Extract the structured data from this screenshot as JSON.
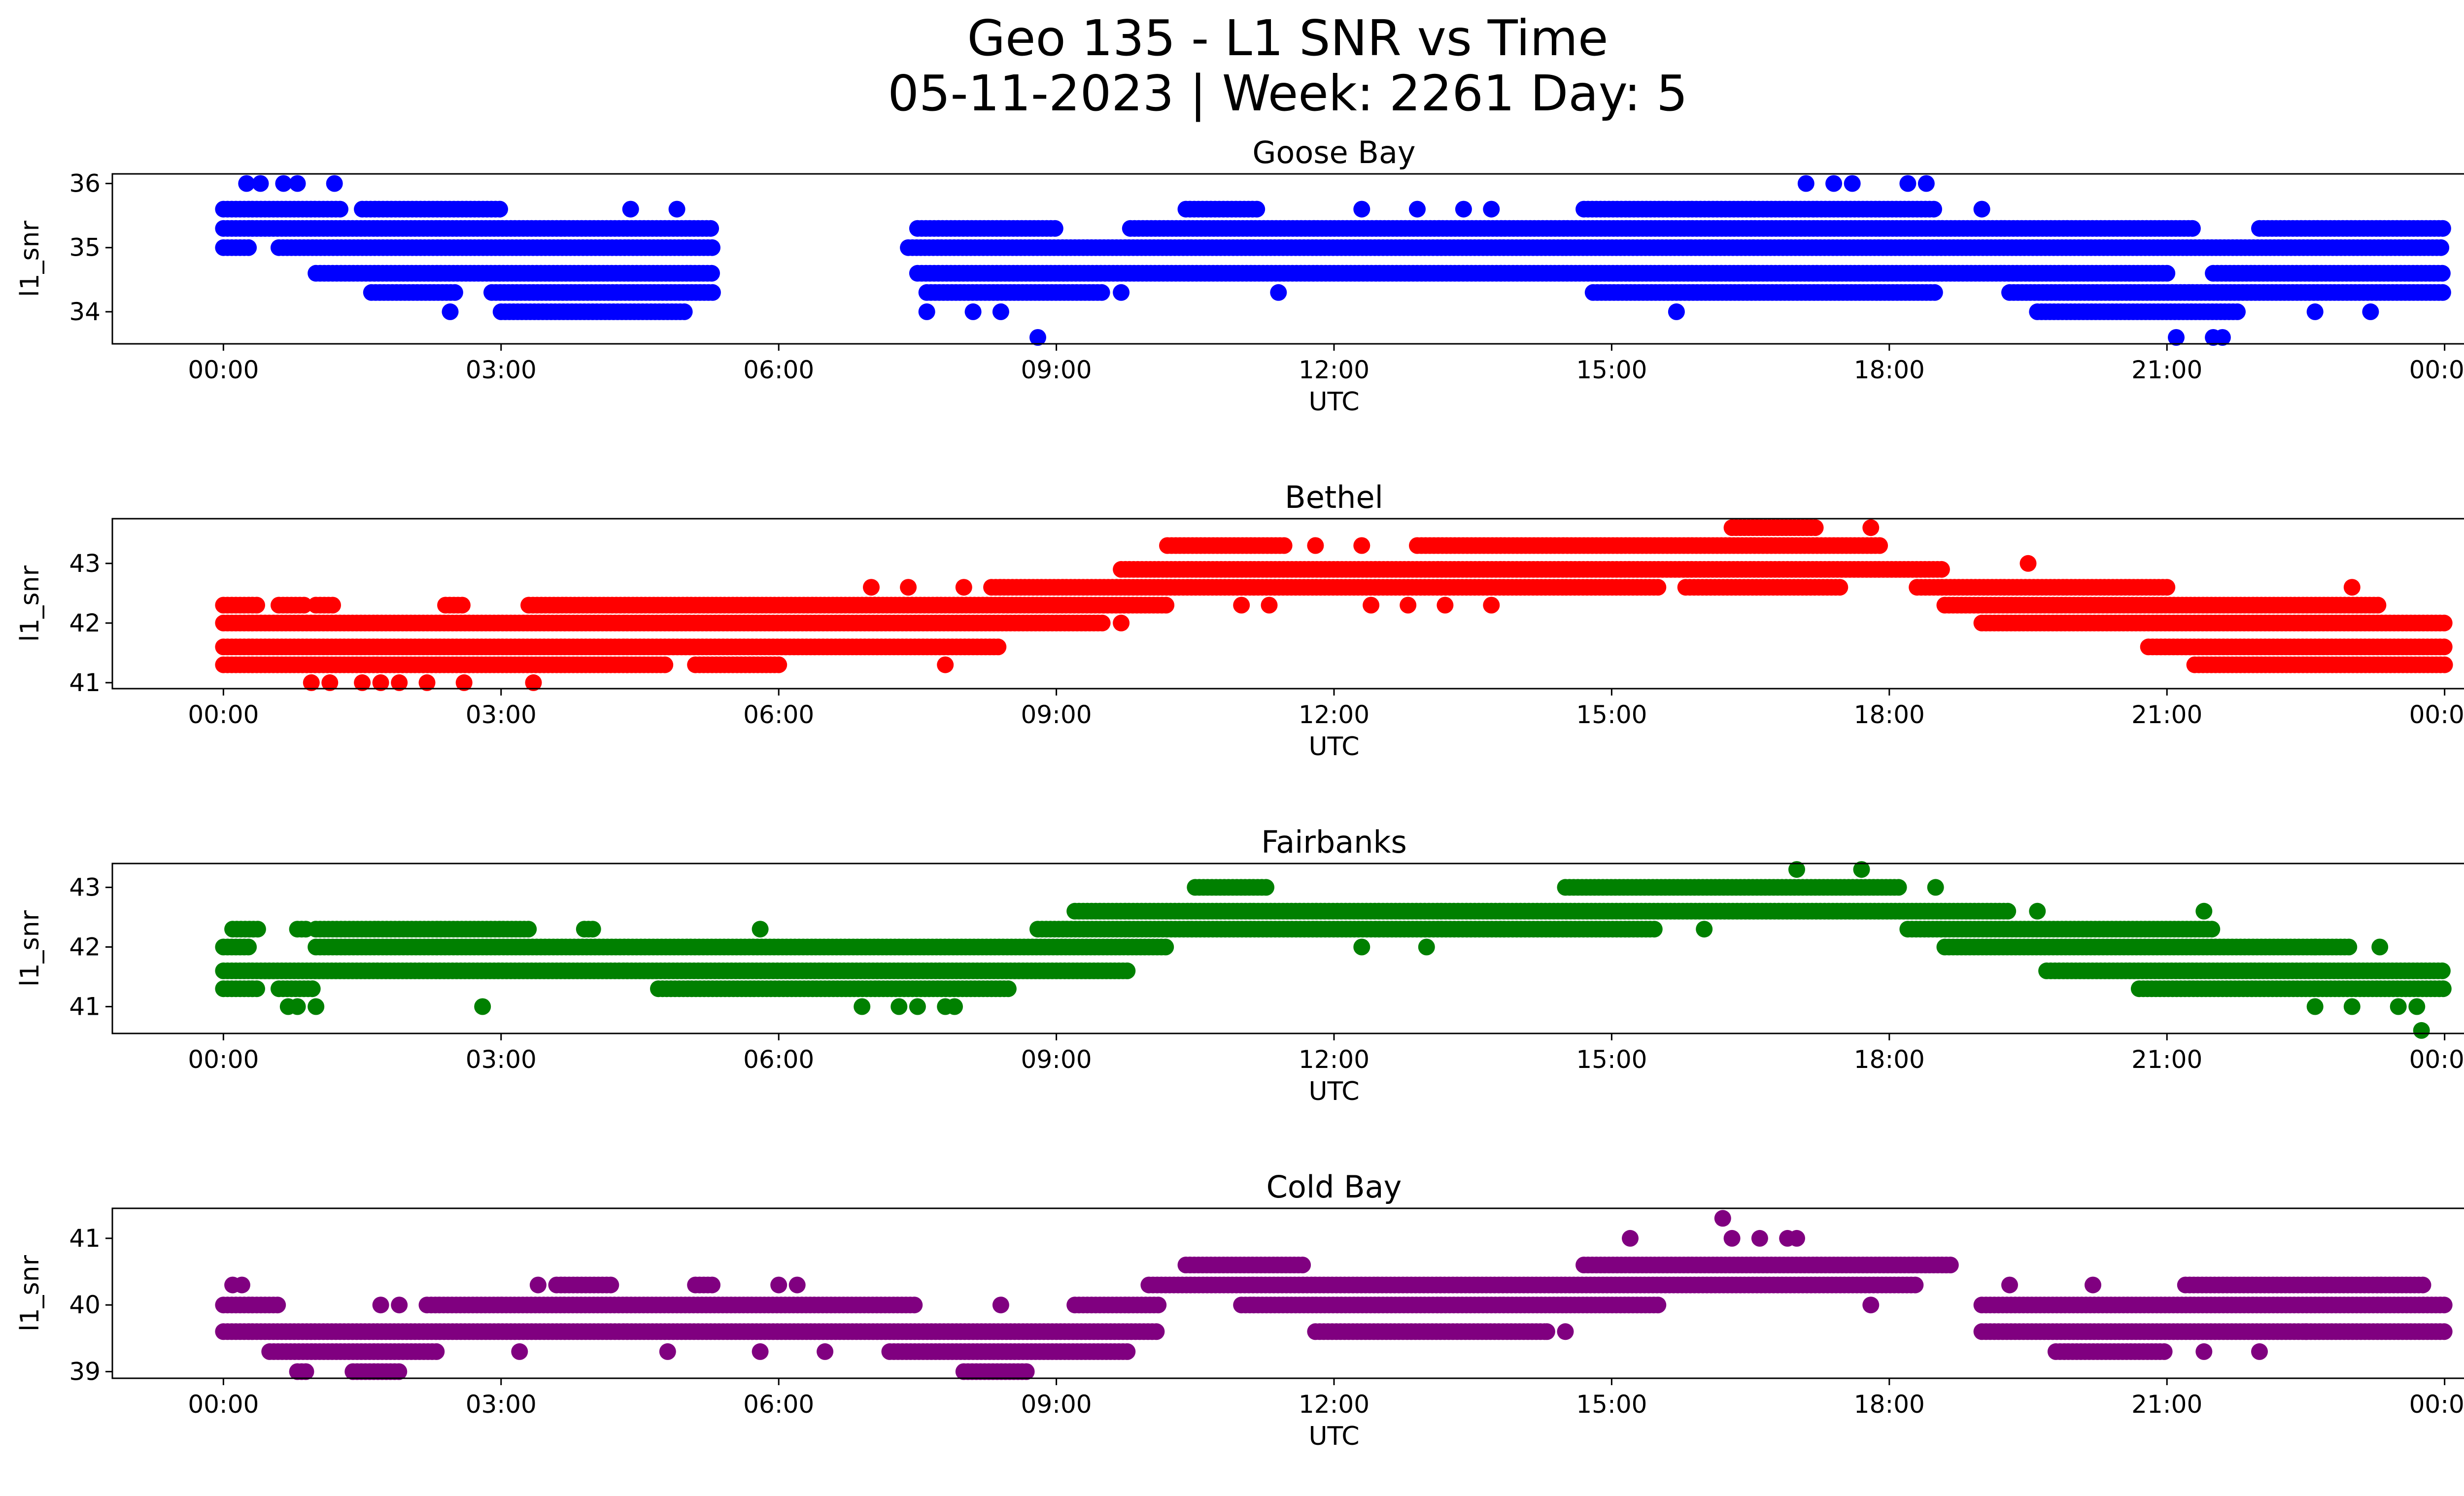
{
  "figure": {
    "title_line1": "Geo 135 - L1 SNR vs Time",
    "title_line2": "05-11-2023 | Week: 2261 Day: 5"
  },
  "chart_data": [
    {
      "type": "scatter",
      "title": "Goose Bay",
      "xlabel": "UTC",
      "ylabel": "l1_snr",
      "color": "#0000ff",
      "x_ticks": [
        "00:00",
        "03:00",
        "06:00",
        "09:00",
        "12:00",
        "15:00",
        "18:00",
        "21:00",
        "00:00"
      ],
      "y_ticks": [
        34,
        35,
        36
      ],
      "xlim_hours": [
        -1.2,
        25.2
      ],
      "ylim": [
        33.5,
        36.15
      ],
      "bands": [
        {
          "y": 35.0,
          "segments": [
            [
              0.0,
              0.3
            ],
            [
              0.6,
              5.3
            ],
            [
              7.4,
              24.0
            ]
          ]
        },
        {
          "y": 35.3,
          "segments": [
            [
              0.0,
              5.3
            ],
            [
              7.5,
              9.0
            ],
            [
              9.8,
              21.3
            ],
            [
              22.0,
              24.0
            ]
          ]
        },
        {
          "y": 34.6,
          "segments": [
            [
              1.0,
              5.3
            ],
            [
              7.5,
              21.0
            ],
            [
              21.5,
              24.0
            ]
          ]
        },
        {
          "y": 35.6,
          "segments": [
            [
              0.0,
              1.3
            ],
            [
              1.5,
              3.0
            ],
            [
              10.4,
              11.2
            ],
            [
              14.7,
              18.5
            ]
          ]
        },
        {
          "y": 34.3,
          "segments": [
            [
              1.6,
              2.5
            ],
            [
              2.9,
              5.3
            ],
            [
              7.6,
              9.5
            ],
            [
              14.8,
              18.5
            ],
            [
              19.3,
              24.0
            ]
          ]
        },
        {
          "y": 34.0,
          "segments": [
            [
              3.0,
              5.0
            ],
            [
              19.6,
              21.8
            ]
          ]
        }
      ],
      "points": [
        {
          "x": 0.25,
          "y": 36.0
        },
        {
          "x": 0.4,
          "y": 36.0
        },
        {
          "x": 0.65,
          "y": 36.0
        },
        {
          "x": 0.8,
          "y": 36.0
        },
        {
          "x": 1.2,
          "y": 36.0
        },
        {
          "x": 17.1,
          "y": 36.0
        },
        {
          "x": 17.4,
          "y": 36.0
        },
        {
          "x": 17.6,
          "y": 36.0
        },
        {
          "x": 18.2,
          "y": 36.0
        },
        {
          "x": 18.4,
          "y": 36.0
        },
        {
          "x": 2.45,
          "y": 34.0
        },
        {
          "x": 7.6,
          "y": 34.0
        },
        {
          "x": 8.1,
          "y": 34.0
        },
        {
          "x": 8.4,
          "y": 34.0
        },
        {
          "x": 15.7,
          "y": 34.0
        },
        {
          "x": 22.6,
          "y": 34.0
        },
        {
          "x": 23.2,
          "y": 34.0
        },
        {
          "x": 8.8,
          "y": 33.6
        },
        {
          "x": 21.1,
          "y": 33.6
        },
        {
          "x": 21.5,
          "y": 33.6
        },
        {
          "x": 21.6,
          "y": 33.6
        },
        {
          "x": 4.4,
          "y": 35.6
        },
        {
          "x": 4.9,
          "y": 35.6
        },
        {
          "x": 12.3,
          "y": 35.6
        },
        {
          "x": 12.9,
          "y": 35.6
        },
        {
          "x": 13.4,
          "y": 35.6
        },
        {
          "x": 13.7,
          "y": 35.6
        },
        {
          "x": 19.0,
          "y": 35.6
        },
        {
          "x": 9.7,
          "y": 34.3
        },
        {
          "x": 11.4,
          "y": 34.3
        }
      ]
    },
    {
      "type": "scatter",
      "title": "Bethel",
      "xlabel": "UTC",
      "ylabel": "l1_snr",
      "color": "#ff0000",
      "x_ticks": [
        "00:00",
        "03:00",
        "06:00",
        "09:00",
        "12:00",
        "15:00",
        "18:00",
        "21:00",
        "00:00"
      ],
      "y_ticks": [
        41,
        42,
        43
      ],
      "xlim_hours": [
        -1.2,
        25.2
      ],
      "ylim": [
        40.9,
        43.75
      ],
      "bands": [
        {
          "y": 41.6,
          "segments": [
            [
              0.0,
              8.4
            ],
            [
              20.8,
              24.0
            ]
          ]
        },
        {
          "y": 42.0,
          "segments": [
            [
              0.0,
              9.5
            ],
            [
              19.0,
              24.0
            ]
          ]
        },
        {
          "y": 41.3,
          "segments": [
            [
              0.0,
              4.8
            ],
            [
              5.1,
              6.0
            ],
            [
              21.3,
              24.0
            ]
          ]
        },
        {
          "y": 42.3,
          "segments": [
            [
              3.3,
              10.2
            ],
            [
              18.6,
              23.3
            ]
          ]
        },
        {
          "y": 42.6,
          "segments": [
            [
              8.3,
              15.5
            ],
            [
              15.8,
              17.5
            ],
            [
              18.3,
              21.0
            ]
          ]
        },
        {
          "y": 42.9,
          "segments": [
            [
              9.7,
              18.6
            ]
          ]
        },
        {
          "y": 43.3,
          "segments": [
            [
              10.2,
              11.5
            ],
            [
              12.9,
              17.9
            ]
          ]
        },
        {
          "y": 43.6,
          "segments": [
            [
              16.3,
              17.2
            ]
          ]
        },
        {
          "y": 42.3,
          "segments": [
            [
              0.0,
              0.4
            ],
            [
              0.6,
              0.9
            ],
            [
              1.0,
              1.2
            ],
            [
              2.4,
              2.6
            ]
          ]
        }
      ],
      "points": [
        {
          "x": 0.95,
          "y": 41.0
        },
        {
          "x": 1.15,
          "y": 41.0
        },
        {
          "x": 1.5,
          "y": 41.0
        },
        {
          "x": 1.7,
          "y": 41.0
        },
        {
          "x": 1.9,
          "y": 41.0
        },
        {
          "x": 2.2,
          "y": 41.0
        },
        {
          "x": 2.6,
          "y": 41.0
        },
        {
          "x": 3.35,
          "y": 41.0
        },
        {
          "x": 7.0,
          "y": 42.6
        },
        {
          "x": 7.4,
          "y": 42.6
        },
        {
          "x": 8.0,
          "y": 42.6
        },
        {
          "x": 7.8,
          "y": 41.3
        },
        {
          "x": 9.7,
          "y": 42.0
        },
        {
          "x": 11.0,
          "y": 42.3
        },
        {
          "x": 11.3,
          "y": 42.3
        },
        {
          "x": 12.4,
          "y": 42.3
        },
        {
          "x": 12.8,
          "y": 42.3
        },
        {
          "x": 13.2,
          "y": 42.3
        },
        {
          "x": 13.7,
          "y": 42.3
        },
        {
          "x": 11.8,
          "y": 43.3
        },
        {
          "x": 12.3,
          "y": 43.3
        },
        {
          "x": 17.8,
          "y": 43.6
        },
        {
          "x": 19.5,
          "y": 43.0
        },
        {
          "x": 23.0,
          "y": 42.6
        }
      ]
    },
    {
      "type": "scatter",
      "title": "Fairbanks",
      "xlabel": "UTC",
      "ylabel": "l1_snr",
      "color": "#008000",
      "x_ticks": [
        "00:00",
        "03:00",
        "06:00",
        "09:00",
        "12:00",
        "15:00",
        "18:00",
        "21:00",
        "00:00"
      ],
      "y_ticks": [
        41,
        42,
        43
      ],
      "xlim_hours": [
        -1.2,
        25.2
      ],
      "ylim": [
        40.55,
        43.4
      ],
      "bands": [
        {
          "y": 41.6,
          "segments": [
            [
              0.0,
              9.8
            ],
            [
              19.7,
              24.0
            ]
          ]
        },
        {
          "y": 42.0,
          "segments": [
            [
              0.0,
              0.3
            ],
            [
              1.0,
              10.2
            ],
            [
              18.6,
              23.0
            ]
          ]
        },
        {
          "y": 41.3,
          "segments": [
            [
              0.0,
              0.4
            ],
            [
              0.6,
              1.0
            ],
            [
              4.7,
              8.5
            ],
            [
              20.7,
              24.0
            ]
          ]
        },
        {
          "y": 42.3,
          "segments": [
            [
              1.0,
              3.3
            ],
            [
              3.9,
              4.0
            ],
            [
              8.8,
              15.5
            ],
            [
              18.2,
              21.5
            ]
          ]
        },
        {
          "y": 42.6,
          "segments": [
            [
              9.2,
              19.3
            ]
          ]
        },
        {
          "y": 43.0,
          "segments": [
            [
              10.5,
              11.3
            ],
            [
              14.5,
              18.1
            ]
          ]
        },
        {
          "y": 42.3,
          "segments": [
            [
              0.1,
              0.4
            ],
            [
              0.8,
              0.9
            ]
          ]
        }
      ],
      "points": [
        {
          "x": 0.7,
          "y": 41.0
        },
        {
          "x": 0.8,
          "y": 41.0
        },
        {
          "x": 1.0,
          "y": 41.0
        },
        {
          "x": 2.8,
          "y": 41.0
        },
        {
          "x": 6.9,
          "y": 41.0
        },
        {
          "x": 7.3,
          "y": 41.0
        },
        {
          "x": 7.5,
          "y": 41.0
        },
        {
          "x": 7.8,
          "y": 41.0
        },
        {
          "x": 7.9,
          "y": 41.0
        },
        {
          "x": 5.8,
          "y": 42.3
        },
        {
          "x": 12.3,
          "y": 42.0
        },
        {
          "x": 13.0,
          "y": 42.0
        },
        {
          "x": 16.0,
          "y": 42.3
        },
        {
          "x": 17.0,
          "y": 43.3
        },
        {
          "x": 17.7,
          "y": 43.3
        },
        {
          "x": 18.5,
          "y": 43.0
        },
        {
          "x": 19.6,
          "y": 42.6
        },
        {
          "x": 21.4,
          "y": 42.6
        },
        {
          "x": 22.6,
          "y": 42.0
        },
        {
          "x": 23.3,
          "y": 42.0
        },
        {
          "x": 22.6,
          "y": 41.0
        },
        {
          "x": 23.0,
          "y": 41.0
        },
        {
          "x": 23.5,
          "y": 41.0
        },
        {
          "x": 23.7,
          "y": 41.0
        },
        {
          "x": 23.75,
          "y": 40.6
        }
      ]
    },
    {
      "type": "scatter",
      "title": "Cold Bay",
      "xlabel": "UTC",
      "ylabel": "l1_snr",
      "color": "#800080",
      "x_ticks": [
        "00:00",
        "03:00",
        "06:00",
        "09:00",
        "12:00",
        "15:00",
        "18:00",
        "21:00",
        "00:00"
      ],
      "y_ticks": [
        39,
        40,
        41
      ],
      "xlim_hours": [
        -1.2,
        25.2
      ],
      "ylim": [
        38.9,
        41.45
      ],
      "bands": [
        {
          "y": 39.6,
          "segments": [
            [
              0.0,
              10.1
            ],
            [
              11.8,
              14.3
            ],
            [
              19.0,
              24.0
            ]
          ]
        },
        {
          "y": 40.0,
          "segments": [
            [
              0.0,
              0.6
            ],
            [
              2.2,
              7.5
            ],
            [
              9.2,
              10.1
            ],
            [
              11.0,
              15.5
            ],
            [
              19.0,
              24.0
            ]
          ]
        },
        {
          "y": 39.3,
          "segments": [
            [
              0.5,
              2.3
            ],
            [
              7.2,
              9.8
            ],
            [
              19.8,
              21.0
            ]
          ]
        },
        {
          "y": 40.3,
          "segments": [
            [
              3.6,
              4.2
            ],
            [
              5.1,
              5.3
            ],
            [
              10.0,
              18.3
            ],
            [
              21.2,
              23.8
            ]
          ]
        },
        {
          "y": 40.6,
          "segments": [
            [
              10.4,
              11.7
            ],
            [
              14.7,
              18.7
            ]
          ]
        },
        {
          "y": 39.0,
          "segments": [
            [
              0.8,
              0.9
            ],
            [
              1.4,
              1.9
            ],
            [
              8.0,
              8.7
            ]
          ]
        }
      ],
      "points": [
        {
          "x": 0.1,
          "y": 40.3
        },
        {
          "x": 0.2,
          "y": 40.3
        },
        {
          "x": 1.7,
          "y": 40.0
        },
        {
          "x": 1.9,
          "y": 40.0
        },
        {
          "x": 3.2,
          "y": 39.3
        },
        {
          "x": 3.4,
          "y": 40.3
        },
        {
          "x": 4.8,
          "y": 39.3
        },
        {
          "x": 5.8,
          "y": 39.3
        },
        {
          "x": 6.0,
          "y": 40.3
        },
        {
          "x": 6.2,
          "y": 40.3
        },
        {
          "x": 6.5,
          "y": 39.3
        },
        {
          "x": 8.4,
          "y": 40.0
        },
        {
          "x": 14.3,
          "y": 39.6
        },
        {
          "x": 14.5,
          "y": 39.6
        },
        {
          "x": 15.2,
          "y": 41.0
        },
        {
          "x": 16.2,
          "y": 41.3
        },
        {
          "x": 16.3,
          "y": 41.0
        },
        {
          "x": 16.6,
          "y": 41.0
        },
        {
          "x": 16.9,
          "y": 41.0
        },
        {
          "x": 17.0,
          "y": 41.0
        },
        {
          "x": 17.8,
          "y": 40.0
        },
        {
          "x": 19.3,
          "y": 40.3
        },
        {
          "x": 20.2,
          "y": 40.3
        },
        {
          "x": 21.4,
          "y": 39.3
        },
        {
          "x": 22.0,
          "y": 39.3
        },
        {
          "x": 22.5,
          "y": 39.6
        }
      ]
    }
  ]
}
